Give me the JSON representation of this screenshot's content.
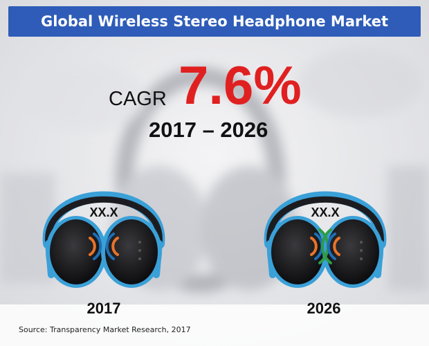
{
  "title": "Global Wireless Stereo Headphone Market",
  "cagr": {
    "label": "CAGR",
    "value": "7.6%",
    "period": "2017 – 2026"
  },
  "headphones": [
    {
      "year": "2017",
      "value": "XX.X"
    },
    {
      "year": "2026",
      "value": "XX.X"
    }
  ],
  "source": "Source: Transparency Market Research, 2017",
  "colors": {
    "title_bar": "#2e5cb8",
    "cagr_value": "#e02020",
    "headband": "#3aa0d8",
    "wave_orange": "#e8742a",
    "wave_blue": "#1e6fb5",
    "wave_green": "#2e9b4a"
  }
}
